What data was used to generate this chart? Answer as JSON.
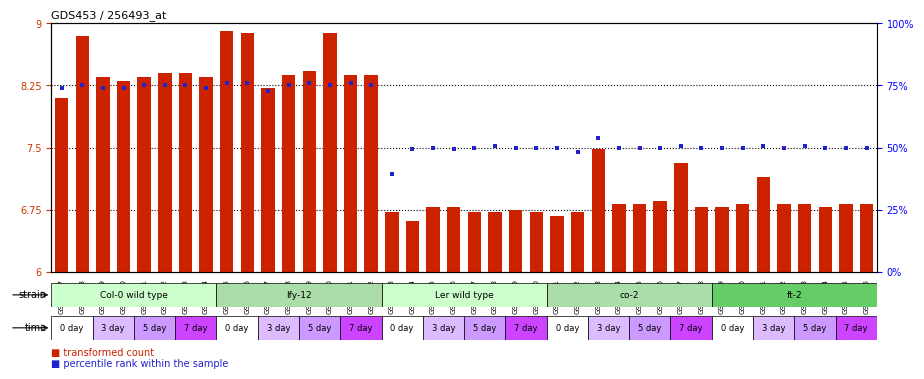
{
  "title": "GDS453 / 256493_at",
  "samples": [
    "GSM8827",
    "GSM8828",
    "GSM8829",
    "GSM8830",
    "GSM8831",
    "GSM8832",
    "GSM8833",
    "GSM8834",
    "GSM8835",
    "GSM8836",
    "GSM8837",
    "GSM8838",
    "GSM8839",
    "GSM8840",
    "GSM8841",
    "GSM8842",
    "GSM8843",
    "GSM8844",
    "GSM8845",
    "GSM8846",
    "GSM8847",
    "GSM8848",
    "GSM8849",
    "GSM8850",
    "GSM8851",
    "GSM8852",
    "GSM8853",
    "GSM8854",
    "GSM8855",
    "GSM8856",
    "GSM8857",
    "GSM8858",
    "GSM8859",
    "GSM8860",
    "GSM8861",
    "GSM8862",
    "GSM8863",
    "GSM8864",
    "GSM8865",
    "GSM8866"
  ],
  "bar_values": [
    8.1,
    8.85,
    8.35,
    8.3,
    8.35,
    8.4,
    8.4,
    8.35,
    8.9,
    8.88,
    8.22,
    8.38,
    8.42,
    8.88,
    8.38,
    8.38,
    6.72,
    6.62,
    6.78,
    6.78,
    6.72,
    6.72,
    6.75,
    6.72,
    6.68,
    6.72,
    7.48,
    6.82,
    6.82,
    6.85,
    7.32,
    6.78,
    6.78,
    6.82,
    7.15,
    6.82,
    6.82,
    6.78,
    6.82,
    6.82
  ],
  "blue_values": [
    8.22,
    8.25,
    8.22,
    8.22,
    8.25,
    8.25,
    8.25,
    8.22,
    8.28,
    8.28,
    8.18,
    8.25,
    8.28,
    8.25,
    8.28,
    8.25,
    7.18,
    7.48,
    7.5,
    7.48,
    7.5,
    7.52,
    7.5,
    7.5,
    7.5,
    7.45,
    7.62,
    7.5,
    7.5,
    7.5,
    7.52,
    7.5,
    7.5,
    7.5,
    7.52,
    7.5,
    7.52,
    7.5,
    7.5,
    7.5
  ],
  "bar_color": "#cc2200",
  "blue_color": "#2222cc",
  "ylim_left": [
    6.0,
    9.0
  ],
  "yticks_left": [
    6,
    6.75,
    7.5,
    8.25,
    9
  ],
  "ytick_labels_left": [
    "6",
    "6.75",
    "7.5",
    "8.25",
    "9"
  ],
  "ylim_right": [
    0,
    100
  ],
  "yticks_right": [
    0,
    25,
    50,
    75,
    100
  ],
  "ytick_labels_right": [
    "0%",
    "25%",
    "50%",
    "75%",
    "100%"
  ],
  "hlines": [
    6.75,
    7.5,
    8.25
  ],
  "strains": [
    {
      "label": "Col-0 wild type",
      "start": 0,
      "end": 8,
      "color": "#ccffcc"
    },
    {
      "label": "lfy-12",
      "start": 8,
      "end": 16,
      "color": "#aaddaa"
    },
    {
      "label": "Ler wild type",
      "start": 16,
      "end": 24,
      "color": "#ccffcc"
    },
    {
      "label": "co-2",
      "start": 24,
      "end": 32,
      "color": "#aaddaa"
    },
    {
      "label": "ft-2",
      "start": 32,
      "end": 40,
      "color": "#66cc66"
    }
  ],
  "times": [
    "0 day",
    "3 day",
    "5 day",
    "7 day"
  ],
  "time_colors": [
    "#ffffff",
    "#ddbbff",
    "#cc99ff",
    "#cc44ff"
  ],
  "legend_bar_label": "transformed count",
  "legend_blue_label": "percentile rank within the sample",
  "bg_color": "#ffffff"
}
